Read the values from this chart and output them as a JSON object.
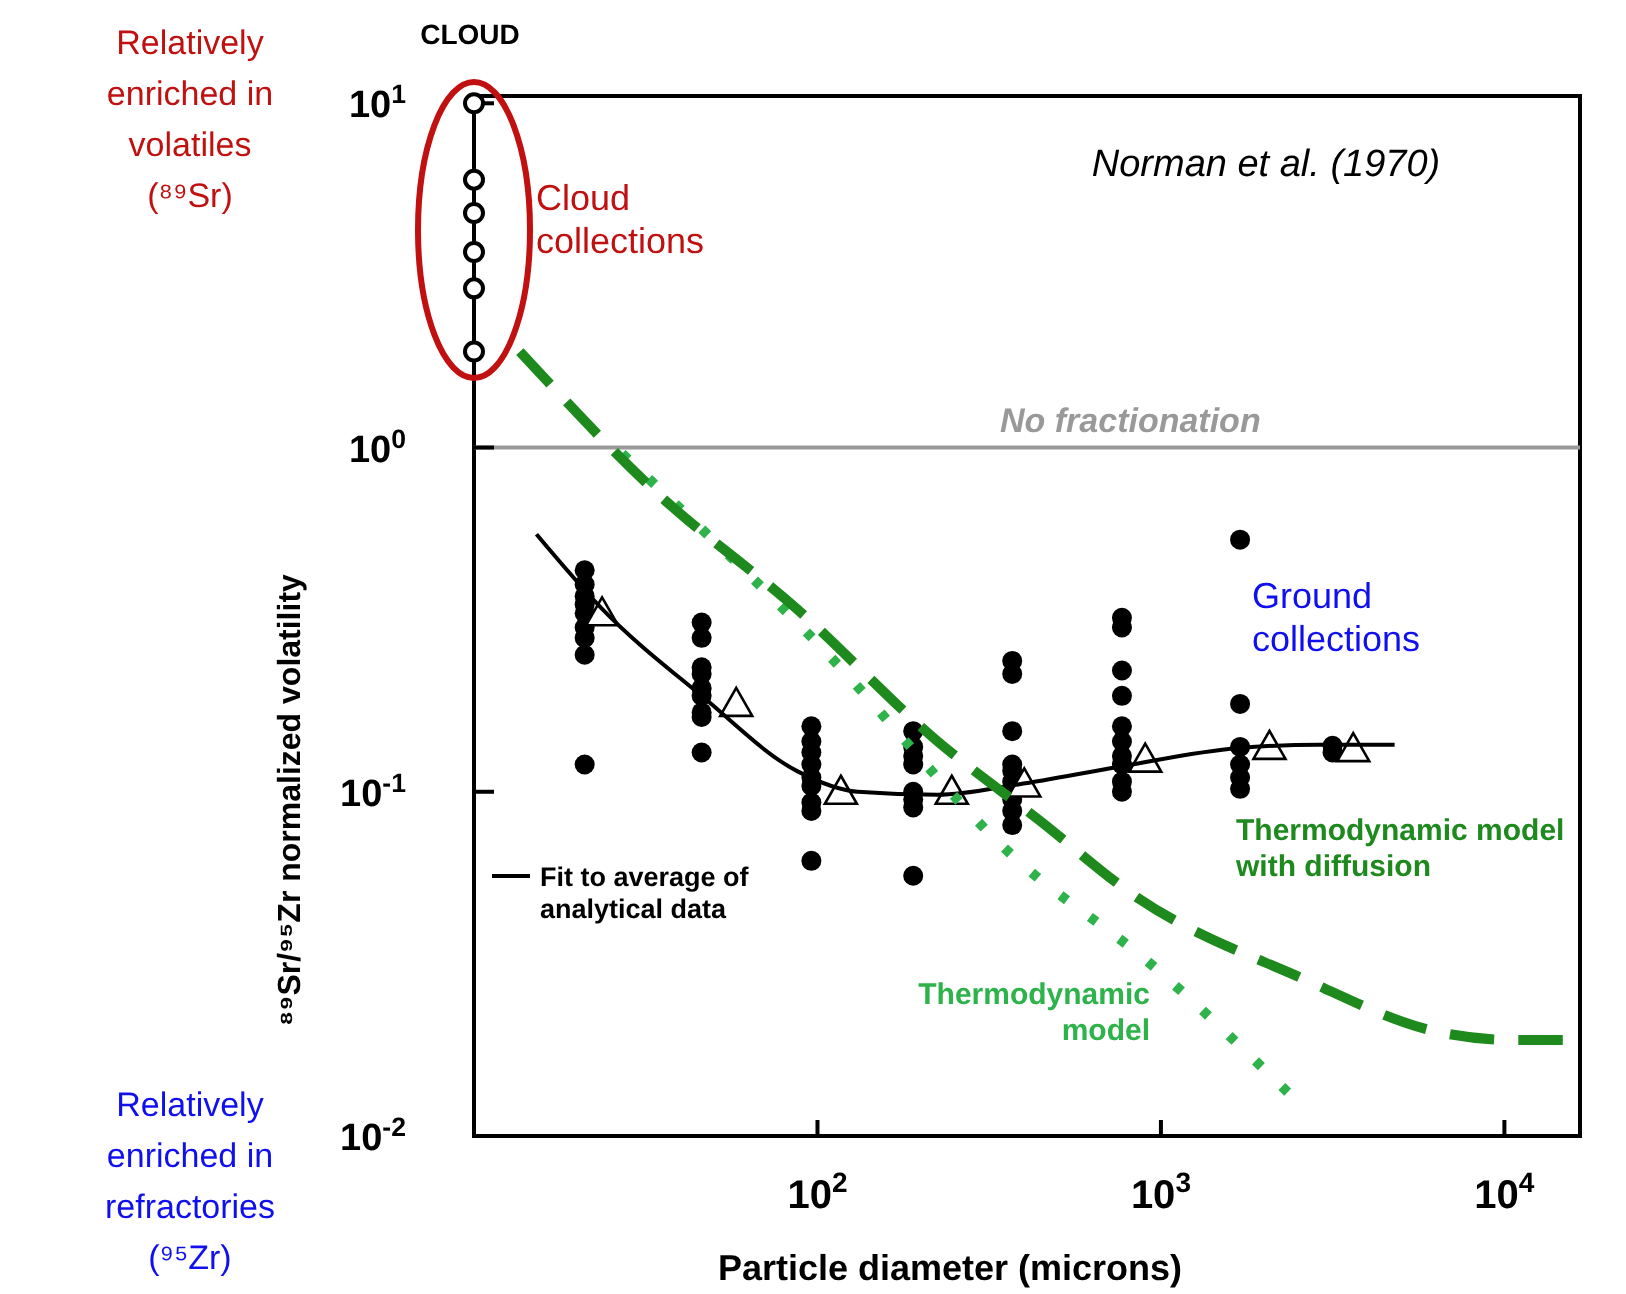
{
  "chart_data": {
    "type": "scatter",
    "xlabel": "Particle diameter (microns)",
    "ylabel": "⁸⁹Sr/⁹⁵Zr normalized volatility",
    "log": "xy",
    "xlim": [
      10,
      16600
    ],
    "ylim": [
      0.01,
      10.5
    ],
    "xticks": [
      {
        "value": 100,
        "label": "10$^{2}$"
      },
      {
        "value": 1000,
        "label": "10$^{3}$"
      },
      {
        "value": 10000,
        "label": "10$^{4}$"
      }
    ],
    "yticks": [
      {
        "value": 0.01,
        "label": "10$^{-2}$"
      },
      {
        "value": 0.1,
        "label": "10$^{-1}$"
      },
      {
        "value": 1,
        "label": "10$^{0}$"
      },
      {
        "value": 10,
        "label": "10$^{1}$"
      }
    ],
    "ref_lines": [
      {
        "axis": "y",
        "value": 1,
        "label": "No fractionation",
        "color": "#999999"
      }
    ],
    "annotations": [
      "Norman et al. (1970)",
      "Relatively enriched in volatiles (⁸⁹Sr)",
      "Relatively enriched in refractories (⁹⁵Zr)",
      "CLOUD"
    ],
    "series": [
      {
        "name": "Cloud collections",
        "marker": "circle",
        "color": "#000000",
        "x": [
          10,
          10,
          10,
          10,
          10,
          10
        ],
        "values": [
          10,
          6.0,
          4.8,
          3.7,
          2.9,
          1.9
        ]
      },
      {
        "name": "Ground collections",
        "marker": "circle",
        "color": "#000000",
        "x": [
          21,
          21,
          21,
          21,
          21,
          21,
          21,
          21,
          21,
          46,
          46,
          46,
          46,
          46,
          46,
          46,
          46,
          46,
          96,
          96,
          96,
          96,
          96,
          96,
          96,
          96,
          96,
          190,
          190,
          190,
          190,
          190,
          190,
          190,
          190,
          369,
          369,
          369,
          369,
          369,
          369,
          369,
          369,
          369,
          770,
          770,
          770,
          770,
          770,
          770,
          770,
          770,
          770,
          770,
          1700,
          1700,
          1700,
          1700,
          1700,
          1700,
          3160,
          3160
        ],
        "values": [
          0.44,
          0.4,
          0.37,
          0.35,
          0.33,
          0.3,
          0.28,
          0.25,
          0.12,
          0.31,
          0.28,
          0.23,
          0.22,
          0.2,
          0.19,
          0.17,
          0.165,
          0.13,
          0.155,
          0.14,
          0.13,
          0.12,
          0.11,
          0.104,
          0.093,
          0.088,
          0.063,
          0.15,
          0.135,
          0.127,
          0.12,
          0.1,
          0.095,
          0.09,
          0.057,
          0.24,
          0.22,
          0.15,
          0.12,
          0.115,
          0.107,
          0.095,
          0.088,
          0.08,
          0.32,
          0.3,
          0.225,
          0.19,
          0.155,
          0.14,
          0.127,
          0.12,
          0.107,
          0.1,
          0.54,
          0.18,
          0.135,
          0.12,
          0.11,
          0.102,
          0.136,
          0.13
        ]
      },
      {
        "marker": "triangle",
        "color": "#000000",
        "x": [
          23.6,
          58,
          117,
          246,
          400,
          900,
          2070,
          3630
        ],
        "values": [
          0.33,
          0.18,
          0.1,
          0.1,
          0.105,
          0.124,
          0.135,
          0.133
        ]
      },
      {
        "name": "Fit to average of analytical data",
        "type": "line",
        "marker": "none",
        "line_style": "solid",
        "color": "#000000",
        "x": [
          15.2,
          23.6,
          46,
          87,
          131,
          224,
          384,
          750,
          1680,
          2900,
          4790
        ],
        "values": [
          0.56,
          0.34,
          0.19,
          0.115,
          0.1,
          0.098,
          0.105,
          0.118,
          0.134,
          0.137,
          0.137
        ]
      },
      {
        "name": "Thermodynamic model",
        "type": "line",
        "marker": "none",
        "line_style": "dotted",
        "color": "#2db34a",
        "x": [
          27,
          100,
          384,
          920,
          2340
        ],
        "values": [
          0.96,
          0.27,
          0.063,
          0.032,
          0.0134
        ]
      },
      {
        "name": "Thermodynamic model with diffusion",
        "type": "line",
        "marker": "none",
        "line_style": "dashed",
        "color": "#1e8a1e",
        "x": [
          13.6,
          34,
          87,
          224,
          440,
          860,
          2520,
          6500,
          10700,
          14800
        ],
        "values": [
          1.9,
          0.74,
          0.34,
          0.14,
          0.083,
          0.049,
          0.029,
          0.02,
          0.019,
          0.019
        ]
      }
    ]
  }
}
